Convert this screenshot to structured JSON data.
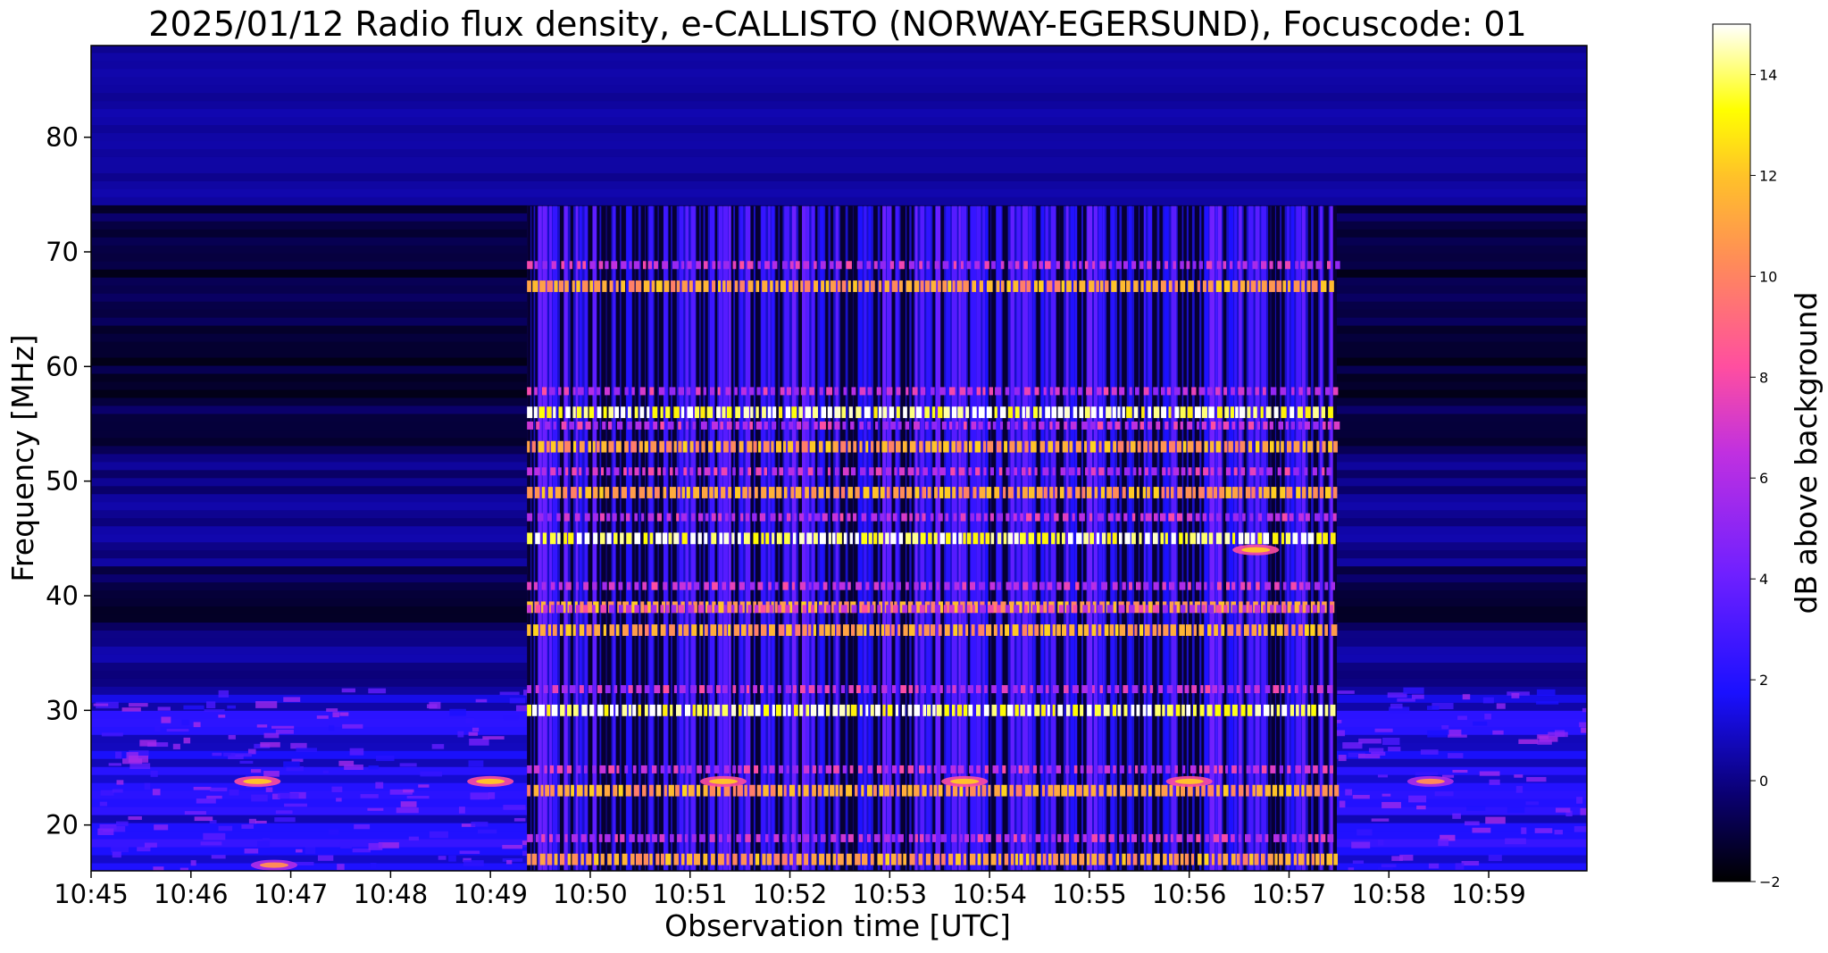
{
  "chart_data": {
    "type": "heatmap",
    "title": "2025/01/12  Radio flux density, e-CALLISTO (NORWAY-EGERSUND), Focuscode: 01",
    "xlabel": "Observation time [UTC]",
    "ylabel": "Frequency [MHz]",
    "x_ticks": [
      "10:45",
      "10:46",
      "10:47",
      "10:48",
      "10:49",
      "10:50",
      "10:51",
      "10:52",
      "10:53",
      "10:54",
      "10:55",
      "10:56",
      "10:57",
      "10:58",
      "10:59"
    ],
    "xlim": [
      "10:45:00",
      "10:59:59"
    ],
    "y_ticks": [
      20,
      30,
      40,
      50,
      60,
      70,
      80
    ],
    "ylim": [
      16,
      88
    ],
    "colorbar": {
      "label": "dB above background",
      "ticks": [
        -2,
        0,
        2,
        4,
        6,
        8,
        10,
        12,
        14
      ],
      "range": [
        -2,
        15
      ],
      "colormap": "gnuplot2",
      "colors": [
        "#000000",
        "#0000ff",
        "#a020ff",
        "#ff50a0",
        "#ffa050",
        "#ffff00",
        "#ffffff"
      ]
    },
    "interference_block": {
      "start": "10:49:22",
      "end": "10:57:28",
      "freq_range": [
        16,
        74
      ],
      "strong_bands_mhz": [
        67,
        56,
        53,
        49,
        45,
        39,
        37,
        30,
        23,
        17
      ],
      "peak_db": 14
    },
    "bright_spots": [
      {
        "time": "10:46:40",
        "freq": 23.8,
        "db": 12
      },
      {
        "time": "10:49:00",
        "freq": 23.8,
        "db": 12
      },
      {
        "time": "10:51:20",
        "freq": 23.8,
        "db": 12
      },
      {
        "time": "10:53:45",
        "freq": 23.8,
        "db": 12
      },
      {
        "time": "10:56:00",
        "freq": 23.8,
        "db": 12
      },
      {
        "time": "10:58:25",
        "freq": 23.8,
        "db": 10
      },
      {
        "time": "10:46:50",
        "freq": 16.5,
        "db": 10
      },
      {
        "time": "10:56:40",
        "freq": 44,
        "db": 12
      }
    ]
  }
}
